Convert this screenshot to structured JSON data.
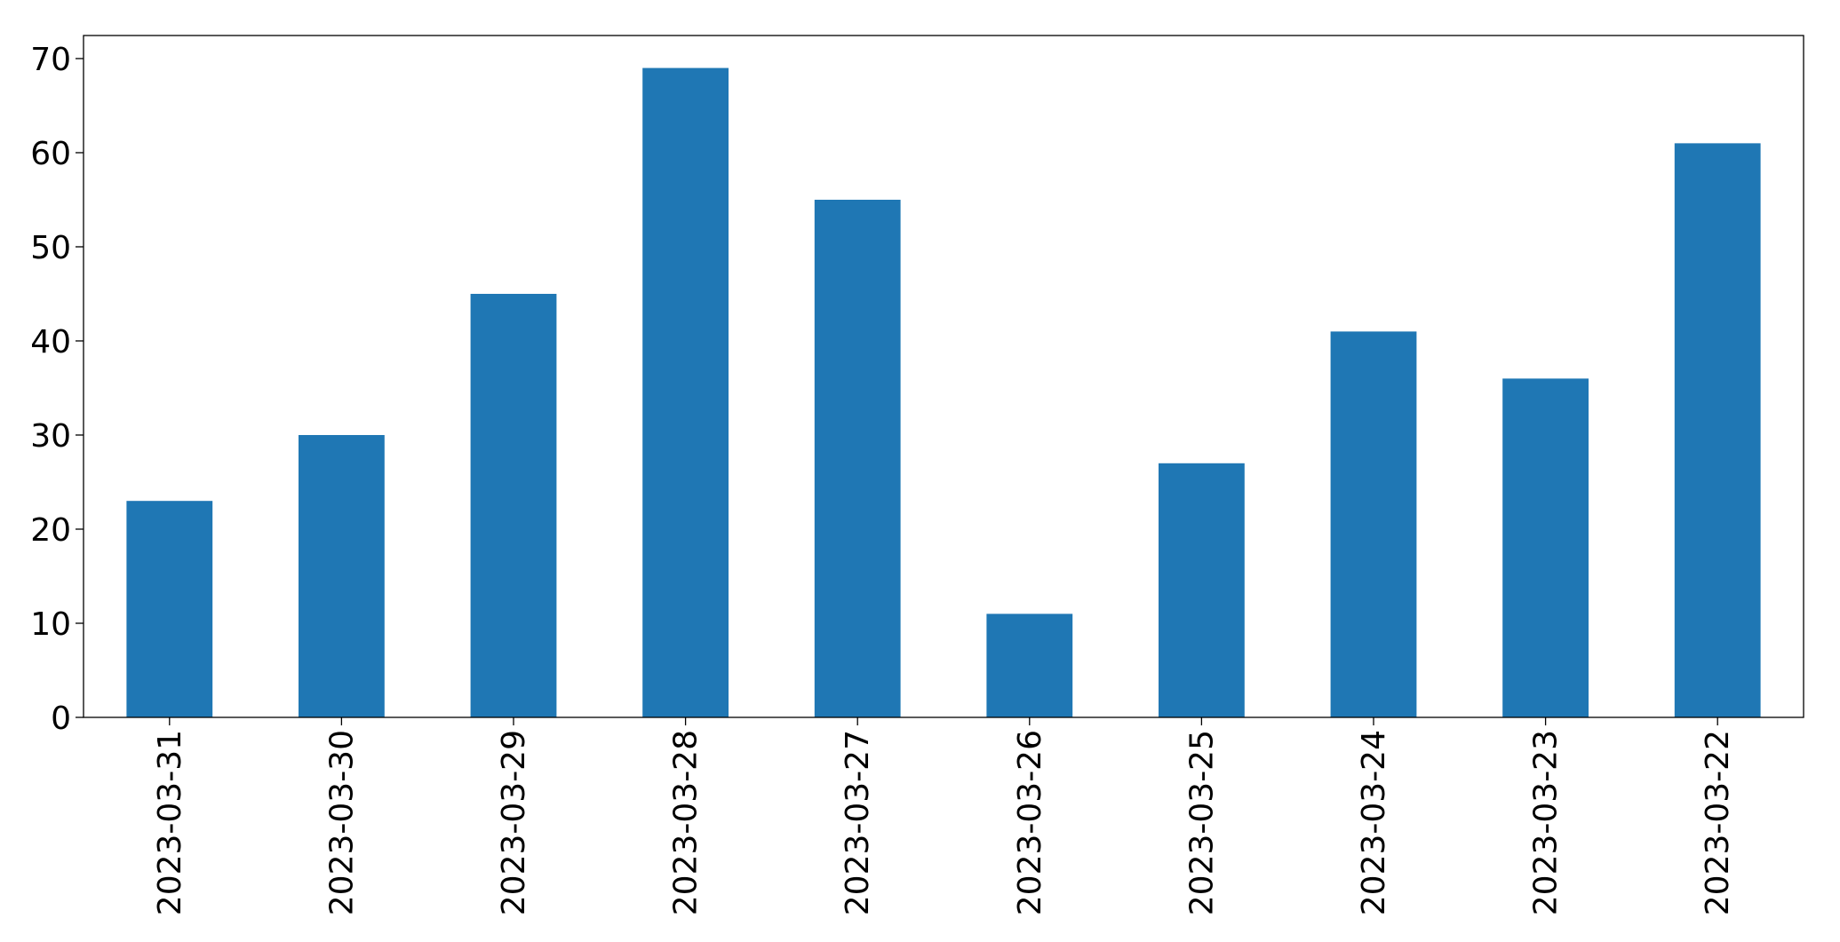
{
  "chart_data": {
    "type": "bar",
    "categories": [
      "2023-03-31",
      "2023-03-30",
      "2023-03-29",
      "2023-03-28",
      "2023-03-27",
      "2023-03-26",
      "2023-03-25",
      "2023-03-24",
      "2023-03-23",
      "2023-03-22"
    ],
    "values": [
      23,
      30,
      45,
      69,
      55,
      11,
      27,
      41,
      36,
      61
    ],
    "color": "#1f77b4",
    "ylim": [
      0,
      72.45
    ],
    "yticks": [
      0,
      10,
      20,
      30,
      40,
      50,
      60,
      70
    ],
    "grid": false
  }
}
